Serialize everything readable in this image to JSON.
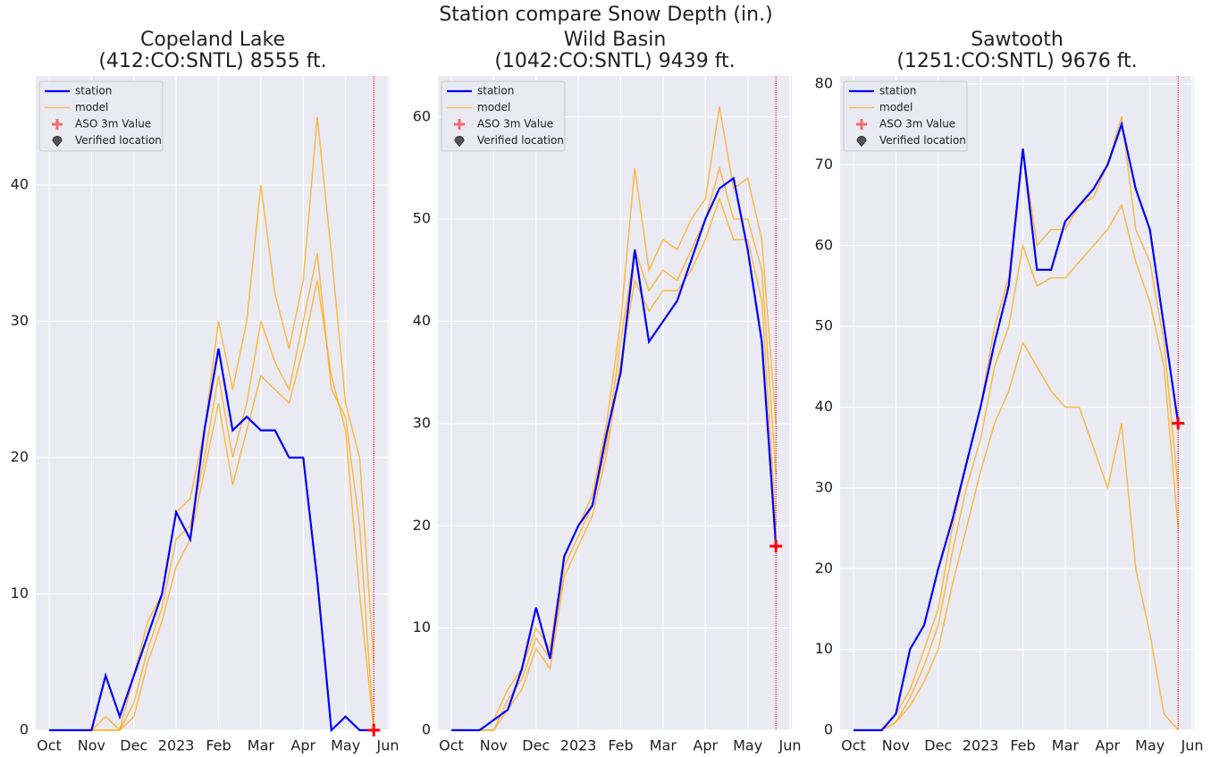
{
  "title": "Station compare Snow Depth (in.)",
  "chart_data": [
    {
      "type": "line",
      "title": [
        "Copeland Lake",
        "(412:CO:SNTL) 8555 ft."
      ],
      "categories": [
        "Oct",
        null,
        null,
        "Nov",
        null,
        null,
        "Dec",
        null,
        null,
        "2023",
        null,
        null,
        "Feb",
        null,
        null,
        "Mar",
        null,
        null,
        "Apr",
        null,
        null,
        "May",
        null,
        null,
        "Jun"
      ],
      "ylim": [
        0,
        48
      ],
      "yticks": [
        0,
        10,
        20,
        30,
        40
      ],
      "grid": true,
      "legend": "upper-left",
      "series": [
        {
          "name": "station",
          "color": "#0000ff",
          "values": [
            0,
            0,
            0,
            0,
            4,
            1,
            4,
            7,
            10,
            16,
            14,
            22,
            28,
            22,
            23,
            22,
            22,
            20,
            20,
            11,
            0,
            1,
            0,
            0,
            null
          ]
        },
        {
          "name": "model",
          "color": "#ffa500",
          "runs": [
            [
              0,
              0,
              0,
              0,
              1,
              0,
              4,
              8,
              10,
              16,
              17,
              22,
              30,
              25,
              30,
              40,
              32,
              28,
              33,
              45,
              35,
              24,
              20,
              5,
              null
            ],
            [
              0,
              0,
              0,
              0,
              0,
              0,
              2,
              6,
              9,
              14,
              15,
              20,
              26,
              20,
              24,
              30,
              27,
              25,
              30,
              35,
              25,
              23,
              15,
              0,
              null
            ],
            [
              0,
              0,
              0,
              0,
              0,
              0,
              1,
              5,
              8,
              12,
              14,
              19,
              24,
              18,
              22,
              26,
              25,
              24,
              28,
              33,
              26,
              22,
              10,
              0,
              null
            ]
          ]
        },
        {
          "name": "ASO 3m Value",
          "color": "#ff0000",
          "values": [
            null,
            null,
            null,
            null,
            null,
            null,
            null,
            null,
            null,
            null,
            null,
            null,
            null,
            null,
            null,
            null,
            null,
            null,
            null,
            null,
            null,
            null,
            null,
            0,
            null
          ]
        },
        {
          "name": "Verified location",
          "color": "#555555"
        }
      ]
    },
    {
      "type": "line",
      "title": [
        "Wild Basin",
        "(1042:CO:SNTL) 9439 ft."
      ],
      "categories": [
        "Oct",
        null,
        null,
        "Nov",
        null,
        null,
        "Dec",
        null,
        null,
        "2023",
        null,
        null,
        "Feb",
        null,
        null,
        "Mar",
        null,
        null,
        "Apr",
        null,
        null,
        "May",
        null,
        null,
        "Jun"
      ],
      "ylim": [
        0,
        64
      ],
      "yticks": [
        0,
        10,
        20,
        30,
        40,
        50,
        60
      ],
      "grid": true,
      "legend": "upper-left",
      "series": [
        {
          "name": "station",
          "color": "#0000ff",
          "values": [
            0,
            0,
            0,
            1,
            2,
            6,
            12,
            7,
            17,
            20,
            22,
            29,
            35,
            47,
            38,
            40,
            42,
            46,
            50,
            53,
            54,
            47,
            38,
            18,
            null
          ]
        },
        {
          "name": "model",
          "color": "#ffa500",
          "runs": [
            [
              0,
              0,
              0,
              1,
              4,
              6,
              10,
              8,
              17,
              20,
              23,
              30,
              40,
              55,
              45,
              48,
              47,
              50,
              52,
              61,
              53,
              54,
              48,
              30,
              null
            ],
            [
              0,
              0,
              0,
              0,
              3,
              5,
              9,
              7,
              16,
              19,
              22,
              28,
              38,
              47,
              43,
              45,
              44,
              47,
              50,
              55,
              50,
              50,
              45,
              25,
              null
            ],
            [
              0,
              0,
              0,
              0,
              2,
              4,
              8,
              6,
              15,
              18,
              21,
              27,
              36,
              44,
              41,
              43,
              43,
              45,
              48,
              52,
              48,
              48,
              42,
              20,
              null
            ]
          ]
        },
        {
          "name": "ASO 3m Value",
          "color": "#ff0000",
          "values": [
            null,
            null,
            null,
            null,
            null,
            null,
            null,
            null,
            null,
            null,
            null,
            null,
            null,
            null,
            null,
            null,
            null,
            null,
            null,
            null,
            null,
            null,
            null,
            18,
            null
          ]
        },
        {
          "name": "Verified location",
          "color": "#555555"
        }
      ]
    },
    {
      "type": "line",
      "title": [
        "Sawtooth",
        "(1251:CO:SNTL) 9676 ft."
      ],
      "categories": [
        "Oct",
        null,
        null,
        "Nov",
        null,
        null,
        "Dec",
        null,
        null,
        "2023",
        null,
        null,
        "Feb",
        null,
        null,
        "Mar",
        null,
        null,
        "Apr",
        null,
        null,
        "May",
        null,
        null,
        "Jun"
      ],
      "ylim": [
        0,
        81
      ],
      "yticks": [
        0,
        10,
        20,
        30,
        40,
        50,
        60,
        70,
        80
      ],
      "grid": true,
      "legend": "upper-left",
      "series": [
        {
          "name": "station",
          "color": "#0000ff",
          "values": [
            0,
            0,
            0,
            2,
            10,
            13,
            20,
            26,
            33,
            40,
            48,
            55,
            72,
            57,
            57,
            63,
            65,
            67,
            70,
            75,
            67,
            62,
            50,
            38,
            null
          ]
        },
        {
          "name": "model",
          "color": "#ffa500",
          "runs": [
            [
              0,
              0,
              0,
              2,
              5,
              10,
              15,
              25,
              33,
              40,
              50,
              56,
              72,
              60,
              62,
              62,
              65,
              66,
              70,
              76,
              62,
              58,
              48,
              30,
              null
            ],
            [
              0,
              0,
              0,
              1,
              4,
              8,
              13,
              22,
              30,
              36,
              45,
              50,
              60,
              55,
              56,
              56,
              58,
              60,
              62,
              65,
              58,
              53,
              45,
              25,
              null
            ],
            [
              0,
              0,
              0,
              1,
              3,
              6,
              10,
              18,
              25,
              32,
              38,
              42,
              48,
              45,
              42,
              40,
              40,
              35,
              30,
              38,
              20,
              12,
              2,
              0,
              null
            ]
          ]
        },
        {
          "name": "ASO 3m Value",
          "color": "#ff0000",
          "values": [
            null,
            null,
            null,
            null,
            null,
            null,
            null,
            null,
            null,
            null,
            null,
            null,
            null,
            null,
            null,
            null,
            null,
            null,
            null,
            null,
            null,
            null,
            null,
            38,
            null
          ]
        },
        {
          "name": "Verified location",
          "color": "#555555"
        }
      ]
    }
  ]
}
